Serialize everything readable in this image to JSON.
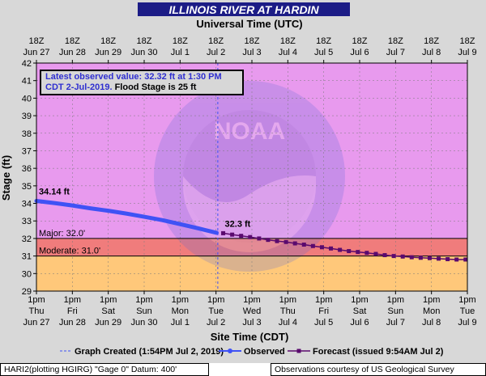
{
  "chart_data": {
    "type": "line",
    "title": "ILLINOIS RIVER AT HARDIN",
    "top_axis_title": "Universal Time (UTC)",
    "bottom_axis_title": "Site Time (CDT)",
    "y_axis_title": "Stage (ft)",
    "ylim": [
      29,
      42
    ],
    "y_ticks": [
      29,
      30,
      31,
      32,
      33,
      34,
      35,
      36,
      37,
      38,
      39,
      40,
      41,
      42
    ],
    "top_ticks": [
      {
        "l1": "18Z",
        "l2": "Jun 27"
      },
      {
        "l1": "18Z",
        "l2": "Jun 28"
      },
      {
        "l1": "18Z",
        "l2": "Jun 29"
      },
      {
        "l1": "18Z",
        "l2": "Jun 30"
      },
      {
        "l1": "18Z",
        "l2": "Jul 1"
      },
      {
        "l1": "18Z",
        "l2": "Jul 2"
      },
      {
        "l1": "18Z",
        "l2": "Jul 3"
      },
      {
        "l1": "18Z",
        "l2": "Jul 4"
      },
      {
        "l1": "18Z",
        "l2": "Jul 5"
      },
      {
        "l1": "18Z",
        "l2": "Jul 6"
      },
      {
        "l1": "18Z",
        "l2": "Jul 7"
      },
      {
        "l1": "18Z",
        "l2": "Jul 8"
      },
      {
        "l1": "18Z",
        "l2": "Jul 9"
      }
    ],
    "bottom_ticks": [
      {
        "l1": "1pm",
        "l2": "Thu",
        "l3": "Jun 27"
      },
      {
        "l1": "1pm",
        "l2": "Fri",
        "l3": "Jun 28"
      },
      {
        "l1": "1pm",
        "l2": "Sat",
        "l3": "Jun 29"
      },
      {
        "l1": "1pm",
        "l2": "Sun",
        "l3": "Jun 30"
      },
      {
        "l1": "1pm",
        "l2": "Mon",
        "l3": "Jul 1"
      },
      {
        "l1": "1pm",
        "l2": "Tue",
        "l3": "Jul 2"
      },
      {
        "l1": "1pm",
        "l2": "Wed",
        "l3": "Jul 3"
      },
      {
        "l1": "1pm",
        "l2": "Thu",
        "l3": "Jul 4"
      },
      {
        "l1": "1pm",
        "l2": "Fri",
        "l3": "Jul 5"
      },
      {
        "l1": "1pm",
        "l2": "Sat",
        "l3": "Jul 6"
      },
      {
        "l1": "1pm",
        "l2": "Sun",
        "l3": "Jul 7"
      },
      {
        "l1": "1pm",
        "l2": "Mon",
        "l3": "Jul 8"
      },
      {
        "l1": "1pm",
        "l2": "Tue",
        "l3": "Jul 9"
      }
    ],
    "stage_bands": [
      {
        "name": "Major",
        "label": "Major: 32.0'",
        "from": 32,
        "to": 42,
        "color": "#e89aee"
      },
      {
        "name": "Moderate",
        "label": "Moderate: 31.0'",
        "from": 31,
        "to": 32,
        "color": "#f07c7c"
      },
      {
        "name": "Action",
        "label": "",
        "from": 29,
        "to": 31,
        "color": "#ffc87a"
      }
    ],
    "graph_created_day": 5.05,
    "series": [
      {
        "name": "Observed",
        "color": "#3f52f5",
        "x": [
          0,
          0.5,
          1,
          1.5,
          2,
          2.5,
          3,
          3.5,
          4,
          4.5,
          5.02
        ],
        "values": [
          34.14,
          34.02,
          33.88,
          33.72,
          33.58,
          33.42,
          33.24,
          33.05,
          32.82,
          32.58,
          32.32
        ],
        "label": "34.14 ft"
      },
      {
        "name": "Forecast",
        "color": "#5a0a6e",
        "x": [
          5.2,
          5.45,
          5.7,
          5.95,
          6.2,
          6.45,
          6.7,
          6.95,
          7.2,
          7.45,
          7.7,
          7.95,
          8.2,
          8.45,
          8.7,
          8.95,
          9.2,
          9.45,
          9.7,
          9.95,
          10.2,
          10.45,
          10.7,
          10.95,
          11.2,
          11.45,
          11.7,
          11.95
        ],
        "values": [
          32.3,
          32.22,
          32.15,
          32.08,
          32.0,
          31.92,
          31.85,
          31.8,
          31.72,
          31.65,
          31.57,
          31.5,
          31.43,
          31.35,
          31.28,
          31.23,
          31.18,
          31.12,
          31.05,
          31.0,
          30.97,
          30.93,
          30.9,
          30.88,
          30.85,
          30.82,
          30.8,
          30.8
        ],
        "label": "32.3 ft"
      }
    ]
  },
  "header": {
    "title": "ILLINOIS RIVER AT HARDIN"
  },
  "info_box": {
    "line1": "Latest observed value: 32.32 ft at 1:30 PM",
    "line2_blue": "CDT 2-Jul-2019.",
    "line2_black": " Flood Stage is 25 ft"
  },
  "legend": {
    "graph_created": "Graph Created (1:54PM Jul 2, 2019)",
    "observed": "Observed",
    "forecast": "Forecast (issued 9:54AM Jul 2)"
  },
  "footer": {
    "left": "HARI2(plotting HGIRG) \"Gage 0\" Datum: 400'",
    "right": "Observations courtesy of US Geological Survey"
  },
  "colors": {
    "title_bar": "#1c1c86",
    "outer_frame": "#d8d8d8",
    "observed": "#3f52f5",
    "forecast": "#5a0a6e"
  }
}
